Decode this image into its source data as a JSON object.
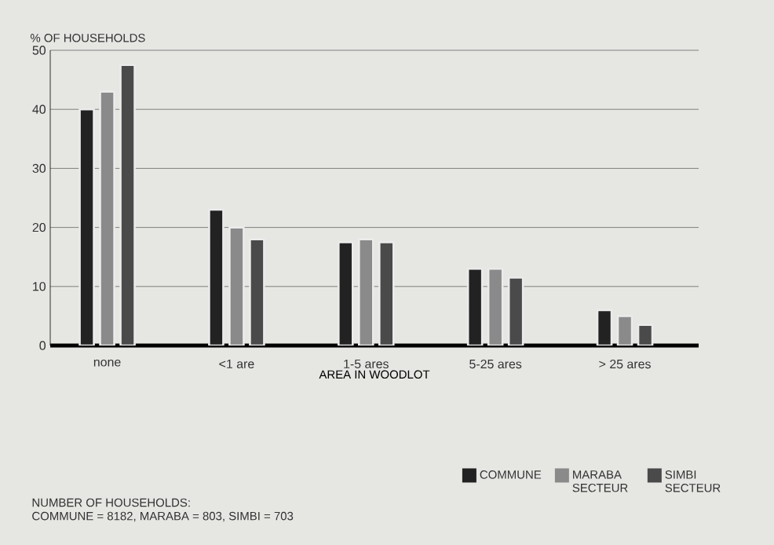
{
  "chart_data": {
    "type": "bar",
    "ylabel": "% OF HOUSEHOLDS",
    "xlabel": "AREA IN WOODLOT",
    "categories": [
      "none",
      "<1 are",
      "1-5 ares",
      "5-25 ares",
      "> 25 ares"
    ],
    "series": [
      {
        "name": "COMMUNE",
        "color": "#222222",
        "values": [
          40,
          23,
          17.5,
          13,
          6
        ]
      },
      {
        "name": "MARABA SECTEUR",
        "color": "#8a8a8a",
        "values": [
          43,
          20,
          18,
          13,
          5
        ]
      },
      {
        "name": "SIMBI SECTEUR",
        "color": "#4a4a4a",
        "values": [
          47.5,
          18,
          17.5,
          11.5,
          3.5
        ]
      }
    ],
    "ylim": [
      0,
      50
    ],
    "yticks": [
      0,
      10,
      20,
      30,
      40,
      50
    ],
    "grid": "y",
    "legend": "bottom right",
    "annotations": [
      "NUMBER OF HOUSEHOLDS:",
      "COMMUNE = 8182, MARABA = 803, SIMBI = 703"
    ]
  }
}
